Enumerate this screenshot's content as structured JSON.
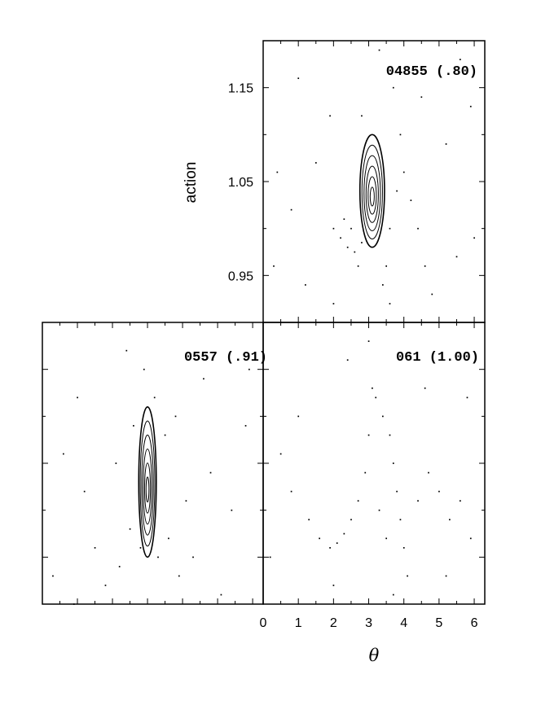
{
  "chart_data": {
    "type": "scatter",
    "ylabel": "action",
    "xlabel": "θ",
    "x_ticks": [
      0,
      1,
      2,
      3,
      4,
      5,
      6
    ],
    "y_ticks": [
      "0.95",
      "1.05",
      "1.15"
    ],
    "xlim": [
      0,
      6.3
    ],
    "ylim": [
      0.9,
      1.2
    ],
    "grid": false,
    "panels": [
      {
        "label": "04855 (.80)",
        "position": "top-right",
        "island": {
          "center_theta": 3.1,
          "center_action": 1.04,
          "half_width_theta": 0.35,
          "half_height_action": 0.06
        },
        "scatter": [
          [
            2.0,
            1.0
          ],
          [
            2.2,
            0.99
          ],
          [
            2.4,
            0.98
          ],
          [
            2.6,
            0.975
          ],
          [
            2.8,
            0.985
          ],
          [
            2.3,
            1.01
          ],
          [
            2.5,
            1.0
          ],
          [
            2.7,
            0.96
          ],
          [
            3.4,
            0.94
          ],
          [
            3.5,
            0.96
          ],
          [
            3.6,
            1.0
          ],
          [
            3.8,
            1.04
          ],
          [
            4.0,
            1.06
          ],
          [
            4.2,
            1.03
          ],
          [
            4.4,
            1.0
          ],
          [
            4.6,
            0.96
          ],
          [
            3.9,
            1.1
          ],
          [
            3.7,
            1.15
          ],
          [
            3.3,
            1.19
          ],
          [
            1.9,
            1.12
          ],
          [
            1.5,
            1.07
          ],
          [
            0.8,
            1.02
          ],
          [
            0.4,
            1.06
          ],
          [
            5.2,
            1.09
          ],
          [
            5.5,
            0.97
          ],
          [
            5.9,
            1.13
          ],
          [
            6.0,
            0.99
          ],
          [
            1.2,
            0.94
          ],
          [
            2.0,
            0.92
          ],
          [
            4.8,
            0.93
          ],
          [
            1.0,
            1.16
          ],
          [
            5.6,
            1.18
          ],
          [
            0.3,
            0.96
          ],
          [
            4.5,
            1.14
          ],
          [
            2.8,
            1.12
          ],
          [
            3.6,
            0.92
          ]
        ]
      },
      {
        "label": "0557 (.91)",
        "position": "bottom-left",
        "island": {
          "center_theta": 3.0,
          "center_action": 1.03,
          "half_width_theta": 0.25,
          "half_height_action": 0.08
        },
        "scatter": [
          [
            2.9,
            1.15
          ],
          [
            3.2,
            1.12
          ],
          [
            2.6,
            1.09
          ],
          [
            3.5,
            1.08
          ],
          [
            2.8,
            0.96
          ],
          [
            3.3,
            0.95
          ],
          [
            2.5,
            0.98
          ],
          [
            3.6,
            0.97
          ],
          [
            2.2,
            0.94
          ],
          [
            3.9,
            0.93
          ],
          [
            1.8,
            0.92
          ],
          [
            4.3,
            0.95
          ],
          [
            1.2,
            1.02
          ],
          [
            0.6,
            1.06
          ],
          [
            4.8,
            1.04
          ],
          [
            5.4,
            1.0
          ],
          [
            5.8,
            1.09
          ],
          [
            0.3,
            0.93
          ],
          [
            1.0,
            1.12
          ],
          [
            4.6,
            1.14
          ],
          [
            2.4,
            1.17
          ],
          [
            5.1,
            0.91
          ],
          [
            1.5,
            0.96
          ],
          [
            3.8,
            1.1
          ],
          [
            2.1,
            1.05
          ],
          [
            4.1,
            1.01
          ],
          [
            0.9,
            0.9
          ],
          [
            5.9,
            1.15
          ]
        ]
      },
      {
        "label": "061 (1.00)",
        "position": "bottom-right",
        "scatter": [
          [
            1.3,
            0.99
          ],
          [
            1.6,
            0.97
          ],
          [
            1.9,
            0.96
          ],
          [
            2.1,
            0.965
          ],
          [
            2.3,
            0.975
          ],
          [
            2.5,
            0.99
          ],
          [
            2.7,
            1.01
          ],
          [
            2.9,
            1.04
          ],
          [
            3.0,
            1.08
          ],
          [
            3.1,
            1.13
          ],
          [
            3.2,
            1.12
          ],
          [
            3.4,
            1.1
          ],
          [
            3.6,
            1.08
          ],
          [
            3.7,
            1.05
          ],
          [
            3.8,
            1.02
          ],
          [
            3.9,
            0.99
          ],
          [
            4.0,
            0.96
          ],
          [
            4.1,
            0.93
          ],
          [
            3.5,
            0.97
          ],
          [
            3.3,
            1.0
          ],
          [
            4.4,
            1.01
          ],
          [
            4.7,
            1.04
          ],
          [
            5.0,
            1.02
          ],
          [
            5.3,
            0.99
          ],
          [
            5.6,
            1.01
          ],
          [
            5.9,
            0.97
          ],
          [
            0.5,
            1.06
          ],
          [
            0.8,
            1.02
          ],
          [
            1.0,
            1.1
          ],
          [
            2.4,
            1.16
          ],
          [
            3.0,
            1.18
          ],
          [
            4.6,
            1.13
          ],
          [
            5.8,
            1.12
          ],
          [
            0.2,
            0.95
          ],
          [
            2.0,
            0.92
          ],
          [
            3.7,
            0.91
          ],
          [
            5.2,
            0.93
          ]
        ]
      }
    ]
  }
}
